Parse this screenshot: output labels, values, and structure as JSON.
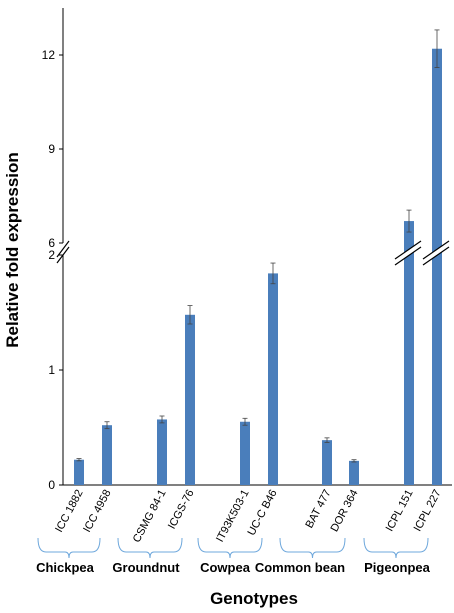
{
  "chart_data": {
    "type": "bar",
    "categories": [
      "ICC 1882",
      "ICC 4958",
      "CSMG 84-1",
      "ICGS-76",
      "IT93K503-1",
      "UC-C B46",
      "BAT 477",
      "DOR 364",
      "ICPL 151",
      "ICPL 227"
    ],
    "values": [
      0.22,
      0.52,
      0.57,
      1.48,
      0.55,
      1.84,
      0.39,
      0.21,
      6.7,
      12.2
    ],
    "errors": [
      0.01,
      0.03,
      0.03,
      0.08,
      0.03,
      0.09,
      0.02,
      0.01,
      0.35,
      0.6
    ],
    "groups": [
      {
        "label": "Chickpea",
        "members": [
          0,
          1
        ]
      },
      {
        "label": "Groundnut",
        "members": [
          2,
          3
        ]
      },
      {
        "label": "Cowpea",
        "members": [
          4,
          5
        ]
      },
      {
        "label": "Common bean",
        "members": [
          6,
          7
        ]
      },
      {
        "label": "Pigeonpea",
        "members": [
          8,
          9
        ]
      }
    ],
    "ylabel": "Relative fold expression",
    "xlabel": "Genotypes",
    "axis_break": {
      "lower_range": [
        0,
        2
      ],
      "upper_range": [
        6,
        13.5
      ]
    },
    "lower_ticks": [
      "0",
      "1",
      "2"
    ],
    "upper_ticks": [
      "6",
      "9",
      "12"
    ],
    "bar_color": "#4a7ebb",
    "bracket_color": "#6fa8dc",
    "grid": false
  }
}
